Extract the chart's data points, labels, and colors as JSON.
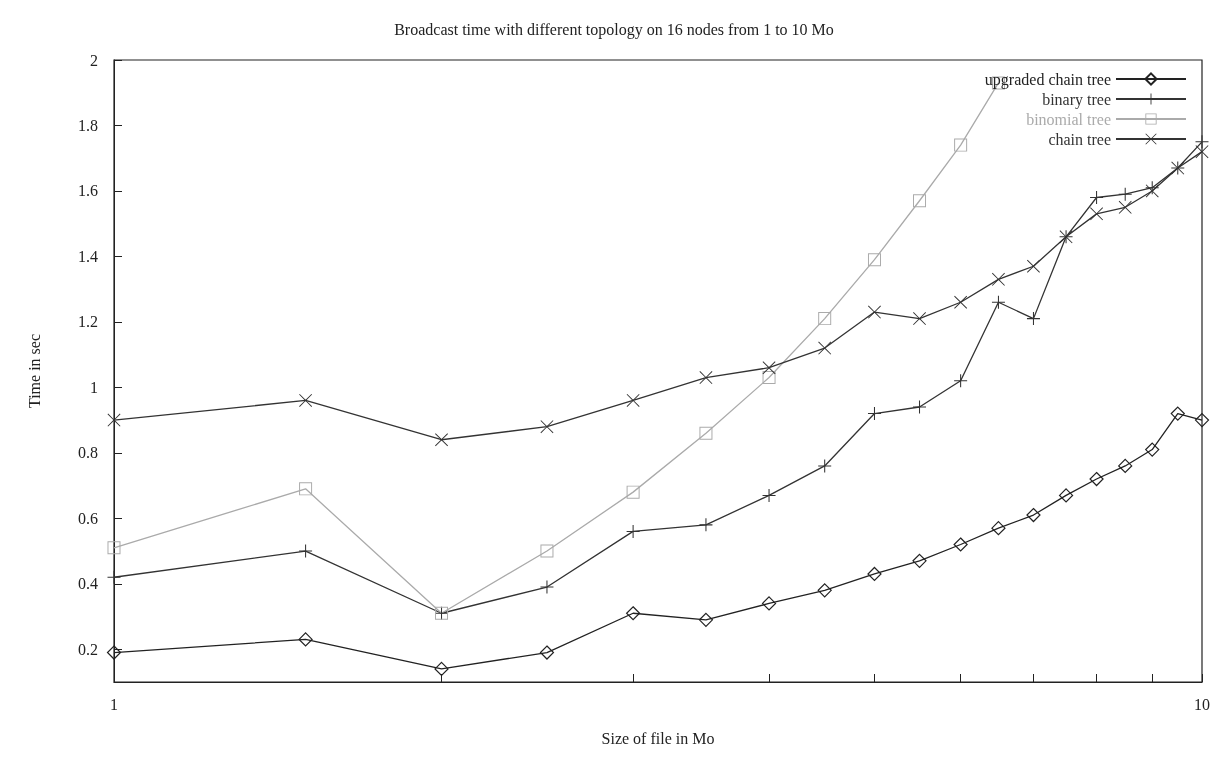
{
  "chart_data": {
    "type": "line",
    "title": "Broadcast time with different topology on 16 nodes from 1 to 10 Mo",
    "xlabel": "Size of file in Mo",
    "ylabel": "Time in sec",
    "x": [
      1,
      1.5,
      2,
      2.5,
      3,
      3.5,
      4,
      4.5,
      5,
      5.5,
      6,
      6.5,
      7,
      7.5,
      8,
      8.5,
      9,
      9.5,
      10
    ],
    "series": [
      {
        "name": "upgraded chain tree",
        "color": "#222222",
        "marker": "diamond",
        "values": [
          0.19,
          0.23,
          0.14,
          0.19,
          0.31,
          0.29,
          0.34,
          0.38,
          0.43,
          0.47,
          0.52,
          0.57,
          0.61,
          0.67,
          0.72,
          0.76,
          0.81,
          0.92,
          0.9
        ]
      },
      {
        "name": "binary tree",
        "color": "#333333",
        "marker": "plus",
        "values": [
          0.42,
          0.5,
          0.31,
          0.39,
          0.56,
          0.58,
          0.67,
          0.76,
          0.92,
          0.94,
          1.02,
          1.26,
          1.21,
          1.46,
          1.58,
          1.59,
          1.61,
          1.67,
          1.75
        ]
      },
      {
        "name": "binomial tree",
        "color": "#aaaaaa",
        "marker": "square",
        "values": [
          0.51,
          0.69,
          0.31,
          0.5,
          0.68,
          0.86,
          1.03,
          1.21,
          1.39,
          1.57,
          1.74,
          1.93,
          null,
          null,
          null,
          null,
          null,
          null,
          null
        ]
      },
      {
        "name": "chain tree",
        "color": "#333333",
        "marker": "cross",
        "values": [
          0.9,
          0.96,
          0.84,
          0.88,
          0.96,
          1.03,
          1.06,
          1.12,
          1.23,
          1.21,
          1.26,
          1.33,
          1.37,
          1.46,
          1.53,
          1.55,
          1.6,
          1.67,
          1.72
        ]
      }
    ],
    "log": "x",
    "xlim": [
      1,
      10
    ],
    "xticks": [
      1,
      {
        "value": 2,
        "label": null
      },
      {
        "value": 3,
        "label": null
      },
      {
        "value": 4,
        "label": null
      },
      {
        "value": 5,
        "label": null
      },
      {
        "value": 6,
        "label": null
      },
      {
        "value": 7,
        "label": null
      },
      {
        "value": 8,
        "label": null
      },
      {
        "value": 9,
        "label": null
      },
      10
    ],
    "ylim": [
      0.1,
      2
    ],
    "yticks": [
      0.2,
      0.4,
      0.6,
      0.8,
      1,
      1.2,
      1.4,
      1.6,
      1.8,
      2
    ],
    "grid": false,
    "legend": "top right",
    "line_style": "solid"
  }
}
